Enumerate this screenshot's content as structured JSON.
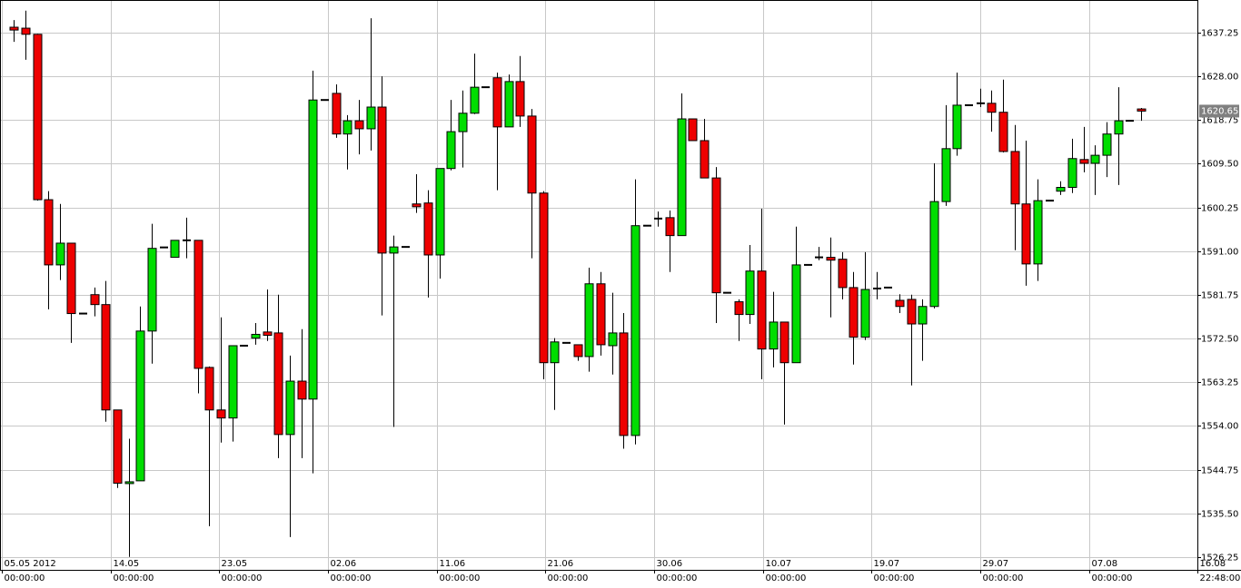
{
  "chart_data": {
    "type": "candlestick",
    "x": [
      0,
      1,
      2,
      3,
      4,
      5,
      6,
      7,
      8,
      9,
      10,
      11,
      12,
      13,
      14,
      15,
      16,
      17,
      18,
      19,
      20,
      21,
      22,
      23,
      24,
      25,
      26,
      27,
      28,
      29,
      30,
      31,
      32,
      33,
      34,
      35,
      36,
      37,
      38,
      39,
      40,
      41,
      42,
      43,
      44,
      45,
      46,
      47,
      48,
      49,
      50,
      51,
      52,
      53,
      54,
      55,
      56,
      57,
      58,
      59,
      60,
      61,
      62,
      63,
      64,
      65,
      66,
      67,
      68,
      69,
      70,
      71,
      72,
      73,
      74,
      75,
      76,
      77,
      78,
      79,
      80,
      81,
      82,
      83,
      84,
      85,
      86,
      87,
      88,
      89,
      90,
      91,
      92,
      93,
      94,
      95,
      96,
      97,
      98
    ],
    "open": [
      1638.4,
      1638.2,
      1636.9,
      1601.9,
      1588.1,
      1592.7,
      1577.8,
      1581.8,
      1579.7,
      1557.4,
      1541.9,
      1542.4,
      1574.1,
      1591.8,
      1589.7,
      1593.3,
      1593.3,
      1566.4,
      1557.4,
      1555.7,
      1571.0,
      1572.6,
      1573.9,
      1573.7,
      1552.2,
      1563.5,
      1559.7,
      1623.0,
      1624.4,
      1615.8,
      1618.6,
      1616.9,
      1621.5,
      1590.6,
      1591.9,
      1601.0,
      1601.2,
      1590.2,
      1608.5,
      1616.3,
      1620.2,
      1625.7,
      1627.7,
      1617.3,
      1626.9,
      1619.6,
      1603.3,
      1567.4,
      1571.6,
      1571.2,
      1568.7,
      1584.1,
      1571.0,
      1573.7,
      1552.0,
      1596.4,
      1597.9,
      1598.1,
      1594.3,
      1619.0,
      1614.4,
      1606.5,
      1582.2,
      1580.3,
      1577.6,
      1586.8,
      1570.3,
      1576.0,
      1567.4,
      1588.1,
      1589.7,
      1589.7,
      1589.3,
      1583.3,
      1572.8,
      1583.1,
      1583.3,
      1580.6,
      1580.8,
      1575.6,
      1579.3,
      1601.5,
      1612.7,
      1621.9,
      1622.3,
      1622.3,
      1620.4,
      1612.1,
      1601.0,
      1588.3,
      1601.7,
      1603.7,
      1604.5,
      1610.4,
      1609.6,
      1611.3,
      1615.8,
      1618.6,
      1621.1
    ],
    "high": [
      1639.9,
      1641.9,
      1637.0,
      1603.7,
      1601.0,
      1592.7,
      1577.8,
      1583.3,
      1584.7,
      1557.4,
      1551.3,
      1579.3,
      1596.8,
      1591.8,
      1593.3,
      1598.1,
      1593.3,
      1566.6,
      1577.0,
      1571.0,
      1571.0,
      1575.8,
      1582.9,
      1581.8,
      1568.9,
      1574.5,
      1629.2,
      1623.0,
      1626.3,
      1619.8,
      1623.0,
      1640.3,
      1628.0,
      1594.3,
      1591.9,
      1607.3,
      1603.9,
      1608.5,
      1623.0,
      1625.0,
      1632.8,
      1625.7,
      1628.8,
      1628.4,
      1632.3,
      1621.1,
      1603.7,
      1572.6,
      1571.6,
      1571.2,
      1587.5,
      1586.6,
      1582.2,
      1577.9,
      1606.2,
      1596.4,
      1599.4,
      1599.6,
      1624.4,
      1619.0,
      1619.0,
      1608.8,
      1582.2,
      1580.8,
      1592.3,
      1600.0,
      1582.4,
      1576.0,
      1596.2,
      1588.1,
      1591.9,
      1593.9,
      1590.8,
      1586.6,
      1590.8,
      1586.6,
      1583.3,
      1581.9,
      1581.8,
      1580.8,
      1609.6,
      1621.9,
      1628.8,
      1621.9,
      1625.4,
      1625.0,
      1627.3,
      1617.7,
      1614.4,
      1606.2,
      1601.7,
      1605.8,
      1614.8,
      1617.3,
      1613.4,
      1618.3,
      1625.7,
      1618.6,
      1621.3
    ],
    "low": [
      1635.3,
      1631.5,
      1601.7,
      1578.7,
      1584.9,
      1571.6,
      1577.8,
      1577.2,
      1554.9,
      1540.9,
      1526.3,
      1542.4,
      1567.2,
      1591.8,
      1589.7,
      1589.5,
      1560.9,
      1532.8,
      1550.5,
      1550.7,
      1571.0,
      1571.2,
      1572.0,
      1547.2,
      1530.5,
      1547.2,
      1544.0,
      1623.0,
      1615.0,
      1608.3,
      1611.5,
      1612.3,
      1577.4,
      1553.8,
      1591.9,
      1599.1,
      1581.2,
      1585.2,
      1608.1,
      1608.7,
      1620.0,
      1625.7,
      1603.9,
      1617.3,
      1617.3,
      1589.5,
      1563.9,
      1557.4,
      1571.6,
      1567.8,
      1565.5,
      1568.9,
      1564.9,
      1549.2,
      1550.1,
      1596.4,
      1596.2,
      1586.6,
      1594.3,
      1614.4,
      1606.5,
      1575.8,
      1582.2,
      1572.0,
      1575.6,
      1563.9,
      1566.4,
      1554.3,
      1567.4,
      1588.1,
      1589.1,
      1577.0,
      1580.8,
      1567.0,
      1572.2,
      1580.8,
      1583.3,
      1577.9,
      1562.6,
      1567.8,
      1578.9,
      1600.6,
      1611.2,
      1621.9,
      1621.5,
      1616.3,
      1611.9,
      1591.2,
      1583.7,
      1584.7,
      1601.7,
      1602.9,
      1603.3,
      1607.7,
      1602.9,
      1606.7,
      1605.0,
      1618.6,
      1618.6
    ],
    "close": [
      1637.8,
      1636.9,
      1601.9,
      1588.1,
      1592.7,
      1577.8,
      1577.8,
      1579.7,
      1557.4,
      1541.9,
      1542.2,
      1574.1,
      1591.6,
      1591.8,
      1593.3,
      1593.3,
      1566.2,
      1557.4,
      1555.7,
      1571.0,
      1571.0,
      1573.4,
      1573.2,
      1552.2,
      1563.5,
      1559.7,
      1623.0,
      1623.0,
      1615.8,
      1618.6,
      1616.9,
      1621.5,
      1590.6,
      1591.9,
      1591.9,
      1600.4,
      1590.2,
      1608.5,
      1616.3,
      1620.2,
      1625.7,
      1625.7,
      1617.3,
      1626.9,
      1619.6,
      1603.3,
      1567.4,
      1571.8,
      1571.6,
      1568.7,
      1584.1,
      1571.2,
      1573.7,
      1552.0,
      1596.4,
      1596.4,
      1597.9,
      1594.3,
      1619.0,
      1614.4,
      1606.5,
      1582.2,
      1582.2,
      1577.6,
      1586.8,
      1570.3,
      1576.0,
      1567.4,
      1588.1,
      1588.1,
      1589.7,
      1589.1,
      1583.3,
      1572.8,
      1582.9,
      1583.1,
      1583.3,
      1579.3,
      1575.6,
      1579.3,
      1601.5,
      1612.7,
      1621.9,
      1621.9,
      1622.3,
      1620.4,
      1612.1,
      1601.0,
      1588.3,
      1601.7,
      1601.7,
      1604.5,
      1610.6,
      1609.6,
      1611.3,
      1615.8,
      1618.6,
      1618.6,
      1620.65
    ],
    "up_color": "#00dd00",
    "down_color": "#ee0000",
    "xlim": [
      -1.2,
      102.9
    ],
    "ylim": [
      1523.56,
      1644.16
    ],
    "xticks": [
      {
        "value": -1.03,
        "label": "05.05 2012",
        "sublabel": "00:00:00"
      },
      {
        "value": 8.42,
        "label": "14.05",
        "sublabel": "00:00:00"
      },
      {
        "value": 17.87,
        "label": "23.05",
        "sublabel": "00:00:00"
      },
      {
        "value": 27.32,
        "label": "02.06",
        "sublabel": "00:00:00"
      },
      {
        "value": 36.77,
        "label": "11.06",
        "sublabel": "00:00:00"
      },
      {
        "value": 46.22,
        "label": "21.06",
        "sublabel": "00:00:00"
      },
      {
        "value": 55.67,
        "label": "30.06",
        "sublabel": "00:00:00"
      },
      {
        "value": 65.12,
        "label": "10.07",
        "sublabel": "00:00:00"
      },
      {
        "value": 74.57,
        "label": "19.07",
        "sublabel": "00:00:00"
      },
      {
        "value": 84.02,
        "label": "29.07",
        "sublabel": "00:00:00"
      },
      {
        "value": 93.47,
        "label": "07.08",
        "sublabel": "00:00:00"
      },
      {
        "value": 102.92,
        "label": "16.08",
        "sublabel": "22:48:00"
      }
    ],
    "yticks": [
      1637.25,
      {
        "value": 1628,
        "label": "1628.00"
      },
      1618.75,
      {
        "value": 1609.5,
        "label": "1609.50"
      },
      1600.25,
      {
        "value": 1591,
        "label": "1591.00"
      },
      1581.75,
      {
        "value": 1572.5,
        "label": "1572.50"
      },
      1563.25,
      {
        "value": 1554,
        "label": "1554.00"
      },
      1544.75,
      {
        "value": 1535.5,
        "label": "1535.50"
      },
      1526.25
    ],
    "last_price": 1620.65,
    "grid": true
  }
}
